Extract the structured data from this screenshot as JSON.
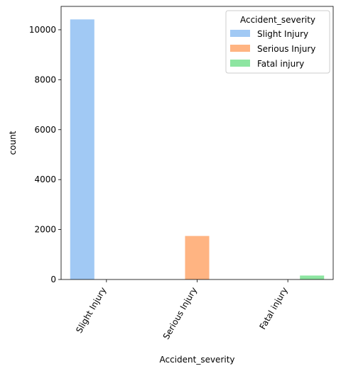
{
  "chart_data": {
    "type": "bar",
    "title": "",
    "xlabel": "Accident_severity",
    "ylabel": "count",
    "categories": [
      "Slight Injury",
      "Serious Injury",
      "Fatal injury"
    ],
    "series": [
      {
        "name": "Slight Injury",
        "color": "#a1c9f4",
        "values": [
          10415,
          0,
          0
        ]
      },
      {
        "name": "Serious Injury",
        "color": "#ffb482",
        "values": [
          0,
          1743,
          0
        ]
      },
      {
        "name": "Fatal injury",
        "color": "#8de5a1",
        "values": [
          0,
          0,
          158
        ]
      }
    ],
    "ylim": [
      0,
      10936
    ],
    "yticks": [
      0,
      2000,
      4000,
      6000,
      8000,
      10000
    ],
    "ytick_labels": [
      "0",
      "2000",
      "4000",
      "6000",
      "8000",
      "10000"
    ],
    "legend_title": "Accident_severity",
    "legend_location": "top-right",
    "grid": false
  }
}
